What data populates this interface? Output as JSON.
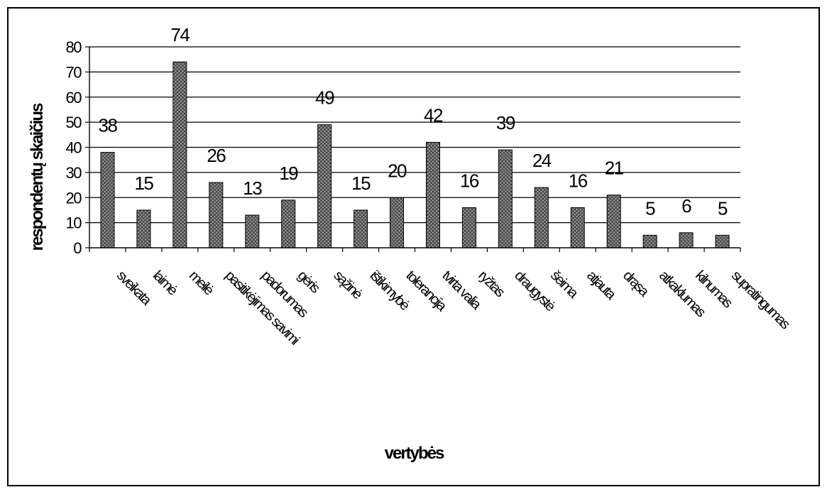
{
  "chart_data": {
    "type": "bar",
    "title": "",
    "xlabel": "vertybės",
    "ylabel": "respondentų skaičius",
    "ylim": [
      0,
      80
    ],
    "yticks": [
      0,
      10,
      20,
      30,
      40,
      50,
      60,
      70,
      80
    ],
    "grid": true,
    "legend": "none",
    "bar_pattern": "crosshatch",
    "categories": [
      "sveikata",
      "laimė",
      "meilė",
      "pasitikėjimas savimi",
      "padorumas",
      "gėris",
      "sąžinė",
      "ištikimybė",
      "tolerancija",
      "tvirta valia",
      "ryžtas",
      "draugystė",
      "šeima",
      "atjauta",
      "drąsa",
      "atkaklumas",
      "kilnumas",
      "supratingumas"
    ],
    "values": [
      38,
      15,
      74,
      26,
      13,
      19,
      49,
      15,
      20,
      42,
      16,
      39,
      24,
      16,
      21,
      5,
      6,
      5
    ]
  }
}
